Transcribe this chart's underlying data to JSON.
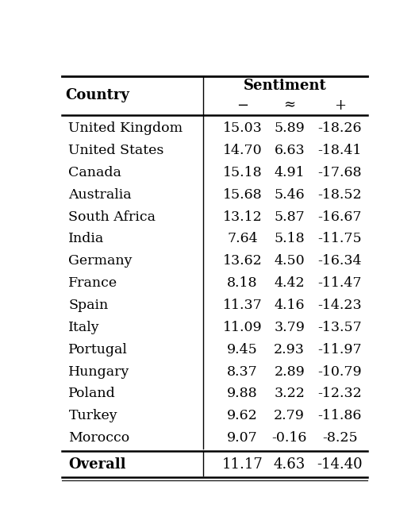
{
  "title": "Sentiment",
  "col_headers": [
    "−",
    "≈",
    "+"
  ],
  "row_label_header": "Country",
  "rows": [
    [
      "United Kingdom",
      "15.03",
      "5.89",
      "-18.26"
    ],
    [
      "United States",
      "14.70",
      "6.63",
      "-18.41"
    ],
    [
      "Canada",
      "15.18",
      "4.91",
      "-17.68"
    ],
    [
      "Australia",
      "15.68",
      "5.46",
      "-18.52"
    ],
    [
      "South Africa",
      "13.12",
      "5.87",
      "-16.67"
    ],
    [
      "India",
      "7.64",
      "5.18",
      "-11.75"
    ],
    [
      "Germany",
      "13.62",
      "4.50",
      "-16.34"
    ],
    [
      "France",
      "8.18",
      "4.42",
      "-11.47"
    ],
    [
      "Spain",
      "11.37",
      "4.16",
      "-14.23"
    ],
    [
      "Italy",
      "11.09",
      "3.79",
      "-13.57"
    ],
    [
      "Portugal",
      "9.45",
      "2.93",
      "-11.97"
    ],
    [
      "Hungary",
      "8.37",
      "2.89",
      "-10.79"
    ],
    [
      "Poland",
      "9.88",
      "3.22",
      "-12.32"
    ],
    [
      "Turkey",
      "9.62",
      "2.79",
      "-11.86"
    ],
    [
      "Morocco",
      "9.07",
      "-0.16",
      "-8.25"
    ]
  ],
  "overall_row": [
    "Overall",
    "11.17",
    "4.63",
    "-14.40"
  ],
  "bg_color": "#ffffff",
  "text_color": "#000000",
  "header_fontsize": 13,
  "body_fontsize": 12.5,
  "overall_fontsize": 13
}
